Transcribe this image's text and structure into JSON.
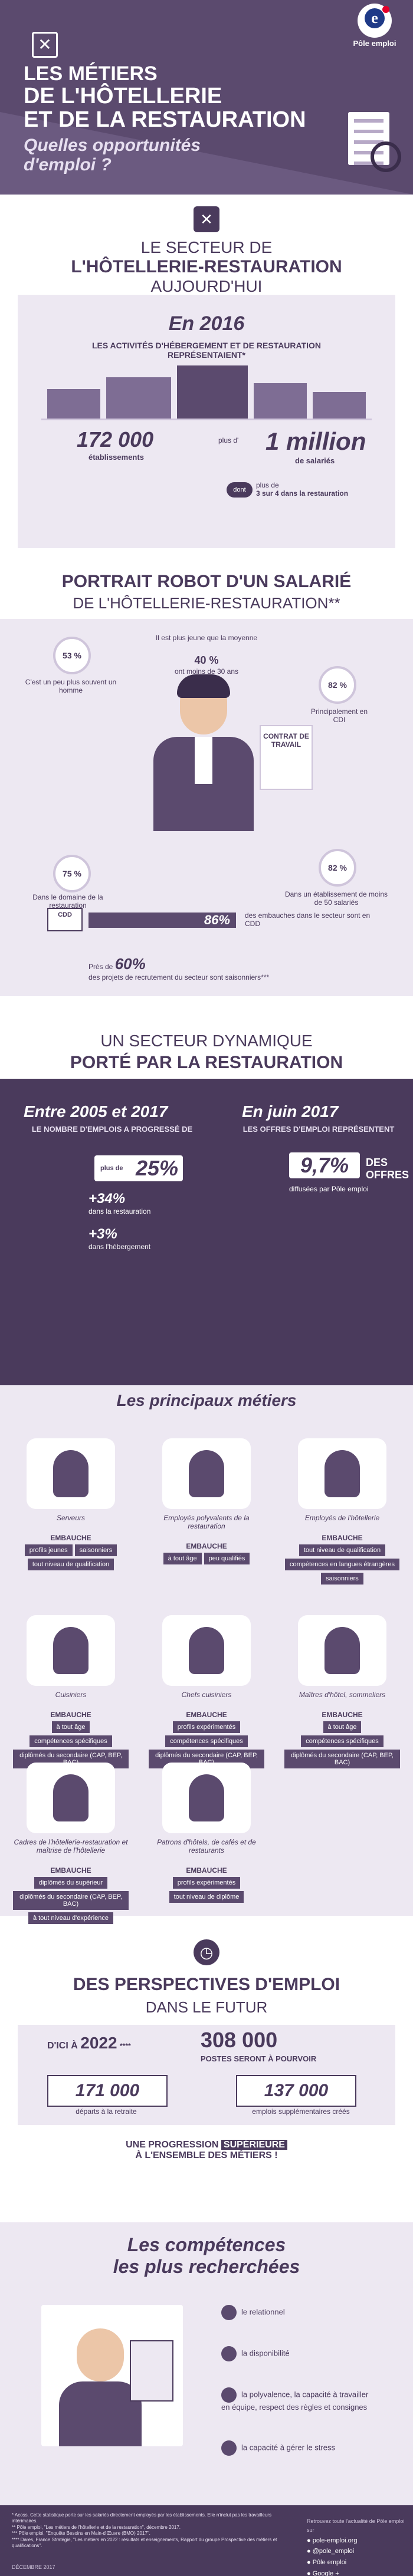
{
  "logo": {
    "text": "Pôle emploi"
  },
  "hero": {
    "line1": "LES MÉTIERS",
    "line2": "DE L'HÔTELLERIE",
    "line3": "ET DE LA RESTAURATION",
    "subtitle": "Quelles opportunités d'emploi ?"
  },
  "sector": {
    "title1": "LE SECTEUR DE",
    "title2": "L'HÔTELLERIE-RESTAURATION",
    "title3": "AUJOURD'HUI"
  },
  "stats2016": {
    "year": "En 2016",
    "desc": "LES ACTIVITÉS D'HÉBERGEMENT ET DE RESTAURATION REPRÉSENTAIENT*",
    "establishments_value": "172 000",
    "establishments_label": "établissements",
    "plus_label": "plus d'",
    "employees_value": "1 million",
    "employees_label": "de salariés",
    "dont": "dont",
    "plus_de": "plus de",
    "restaurant_share": "3 sur 4 dans la restauration"
  },
  "portrait": {
    "title1": "PORTRAIT ROBOT D'UN SALARIÉ",
    "title2": "DE L'HÔTELLERIE-RESTAURATION**",
    "pct_man": "53 %",
    "man_text": "C'est un peu plus souvent un homme",
    "young_text": "Il est plus jeune que la moyenne",
    "pct_young": "40 %",
    "young_sub": "ont moins de 30 ans",
    "pct_cdi": "82 %",
    "cdi_text": "Principalement en CDI",
    "contract": "CONTRAT DE TRAVAIL",
    "pct_rest": "75 %",
    "rest_text": "Dans le domaine de la restauration",
    "pct_small": "82 %",
    "small_text": "Dans un établissement de moins de 50 salariés",
    "cdd_tag": "CDD",
    "cdd_value": "86%",
    "cdd_text": "des embauches dans le secteur sont en CDD",
    "prefix_60": "Près de",
    "value_60": "60%",
    "text_60": "des projets de recrutement du secteur sont saisonniers***"
  },
  "dynamic": {
    "title1": "UN SECTEUR DYNAMIQUE",
    "title2": "PORTÉ PAR LA RESTAURATION",
    "left_head": "Entre 2005 et 2017",
    "left_sub": "LE NOMBRE D'EMPLOIS A PROGRESSÉ DE",
    "plus_de": "plus de",
    "left_value": "25%",
    "rest_value": "+34%",
    "rest_label": "dans la restauration",
    "heb_value": "+3%",
    "heb_label": "dans l'hébergement",
    "right_head": "En juin 2017",
    "right_sub": "LES OFFRES D'EMPLOI REPRÉSENTENT",
    "right_value": "9,7%",
    "right_offres": "DES OFFRES",
    "right_note": "diffusées par Pôle emploi"
  },
  "jobs": {
    "title": "Les principaux métiers",
    "embauche": "EMBAUCHE",
    "items": [
      {
        "name": "Serveurs",
        "tags": [
          "profils jeunes",
          "saisonniers",
          "tout niveau de qualification"
        ]
      },
      {
        "name": "Employés polyvalents de la restauration",
        "tags": [
          "à tout âge",
          "peu qualifiés"
        ]
      },
      {
        "name": "Employés de l'hôtellerie",
        "tags": [
          "tout niveau de qualification",
          "compétences en langues étrangères",
          "saisonniers"
        ]
      },
      {
        "name": "Cuisiniers",
        "tags": [
          "à tout âge",
          "compétences spécifiques",
          "diplômés du secondaire (CAP, BEP, BAC)"
        ]
      },
      {
        "name": "Chefs cuisiniers",
        "tags": [
          "profils expérimentés",
          "compétences spécifiques",
          "diplômés du secondaire (CAP, BEP, BAC)"
        ]
      },
      {
        "name": "Maîtres d'hôtel, sommeliers",
        "tags": [
          "à tout âge",
          "compétences spécifiques",
          "diplômés du secondaire (CAP, BEP, BAC)"
        ]
      },
      {
        "name": "Cadres de l'hôtellerie-restauration et maîtrise de l'hôtellerie",
        "tags": [
          "diplômés du supérieur",
          "diplômés du secondaire (CAP, BEP, BAC)",
          "à tout niveau d'expérience"
        ]
      },
      {
        "name": "Patrons d'hôtels, de cafés et de restaurants",
        "tags": [
          "profils expérimentés",
          "tout niveau de diplôme"
        ]
      }
    ]
  },
  "future": {
    "title1": "DES PERSPECTIVES D'EMPLOI",
    "title2": "DANS LE FUTUR",
    "dici": "D'ICI À",
    "year": "2022",
    "stars": "****",
    "total": "308 000",
    "total_label": "POSTES SERONT À POURVOIR",
    "retire_value": "171 000",
    "retire_label": "départs à la retraite",
    "create_value": "137 000",
    "create_label": "emplois supplémentaires créés",
    "progress1": "UNE PROGRESSION",
    "progress2": "SUPÉRIEURE",
    "progress3": "À L'ENSEMBLE DES MÉTIERS !"
  },
  "skills": {
    "title1": "Les compétences",
    "title2": "les plus recherchées",
    "items": [
      "le relationnel",
      "la disponibilité",
      "la polyvalence, la capacité à travailler en équipe, respect des règles et consignes",
      "la capacité à gérer le stress"
    ]
  },
  "footer": {
    "notes": [
      "* Acoss. Cette statistique porte sur les salariés directement employés par les établissements. Elle n'inclut pas les travailleurs intérimaires.",
      "** Pôle emploi, \"Les métiers de l'hôtellerie et de la restauration\", décembre 2017.",
      "*** Pôle emploi, \"Enquête Besoins en Main-d'Œuvre (BMO) 2017\".",
      "**** Dares, France Stratégie, \"Les métiers en 2022 : résultats et enseignements, Rapport du groupe Prospective des métiers et qualifications\"."
    ],
    "cta": "Retrouvez toute l'actualité de Pôle emploi sur",
    "links": [
      "pole-emploi.org",
      "@pole_emploi",
      "Pôle emploi",
      "Google +",
      "Pôle emploi national"
    ],
    "date": "DÉCEMBRE 2017"
  }
}
